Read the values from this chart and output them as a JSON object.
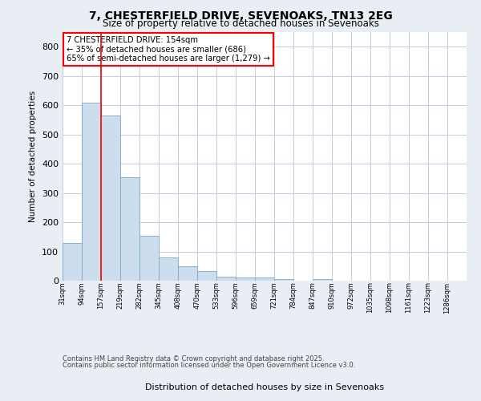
{
  "title_line1": "7, CHESTERFIELD DRIVE, SEVENOAKS, TN13 2EG",
  "title_line2": "Size of property relative to detached houses in Sevenoaks",
  "xlabel": "Distribution of detached houses by size in Sevenoaks",
  "ylabel": "Number of detached properties",
  "bar_labels": [
    "31sqm",
    "94sqm",
    "157sqm",
    "219sqm",
    "282sqm",
    "345sqm",
    "408sqm",
    "470sqm",
    "533sqm",
    "596sqm",
    "659sqm",
    "721sqm",
    "784sqm",
    "847sqm",
    "910sqm",
    "972sqm",
    "1035sqm",
    "1098sqm",
    "1161sqm",
    "1223sqm",
    "1286sqm"
  ],
  "bar_values": [
    130,
    610,
    565,
    355,
    153,
    80,
    50,
    32,
    15,
    12,
    12,
    5,
    0,
    6,
    0,
    0,
    0,
    0,
    0,
    0,
    0
  ],
  "bar_color": "#ccdded",
  "bar_edge_color": "#7aaac8",
  "annotation_text": "7 CHESTERFIELD DRIVE: 154sqm\n← 35% of detached houses are smaller (686)\n65% of semi-detached houses are larger (1,279) →",
  "red_line_x": 2,
  "ylim": [
    0,
    850
  ],
  "yticks": [
    0,
    100,
    200,
    300,
    400,
    500,
    600,
    700,
    800
  ],
  "footer_line1": "Contains HM Land Registry data © Crown copyright and database right 2025.",
  "footer_line2": "Contains public sector information licensed under the Open Government Licence v3.0.",
  "background_color": "#e8eef4",
  "plot_background": "#ffffff",
  "grid_color": "#c0d0e0"
}
